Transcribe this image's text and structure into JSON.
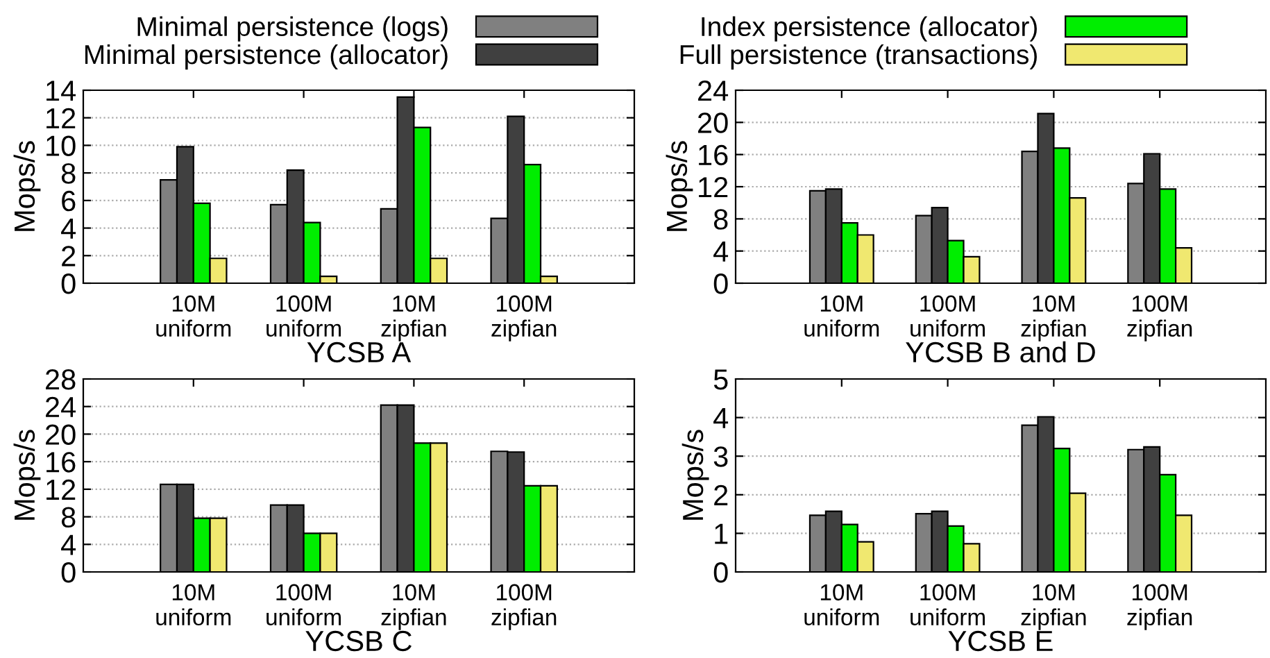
{
  "chart_data": [
    {
      "type": "bar",
      "xlabel": "YCSB A",
      "ylabel": "Mops/s",
      "categories": [
        "10M\nuniform",
        "100M\nuniform",
        "10M\nzipfian",
        "100M\nzipfian"
      ],
      "ylim": [
        0,
        14
      ],
      "yticks": [
        0,
        2,
        4,
        6,
        8,
        10,
        12,
        14
      ],
      "grid": "y",
      "legend": "top",
      "series": [
        {
          "name": "Minimal persistence (logs)",
          "color": "#808080",
          "values": [
            7.5,
            5.7,
            5.4,
            4.7
          ]
        },
        {
          "name": "Minimal persistence (allocator)",
          "color": "#404040",
          "values": [
            9.9,
            8.2,
            13.5,
            12.1
          ]
        },
        {
          "name": "Index persistence (allocator)",
          "color": "#00ee00",
          "values": [
            5.8,
            4.4,
            11.3,
            8.6
          ]
        },
        {
          "name": "Full persistence (transactions)",
          "color": "#f0e870",
          "values": [
            1.8,
            0.5,
            1.8,
            0.5
          ]
        }
      ]
    },
    {
      "type": "bar",
      "xlabel": "YCSB B and D",
      "ylabel": "Mops/s",
      "categories": [
        "10M\nuniform",
        "100M\nuniform",
        "10M\nzipfian",
        "100M\nzipfian"
      ],
      "ylim": [
        0,
        24
      ],
      "yticks": [
        0,
        4,
        8,
        12,
        16,
        20,
        24
      ],
      "grid": "y",
      "series": [
        {
          "color": "#808080",
          "values": [
            11.5,
            8.4,
            16.4,
            12.4
          ]
        },
        {
          "color": "#404040",
          "values": [
            11.7,
            9.4,
            21.1,
            16.1
          ]
        },
        {
          "color": "#00ee00",
          "values": [
            7.5,
            5.3,
            16.8,
            11.7
          ]
        },
        {
          "color": "#f0e870",
          "values": [
            6.0,
            3.3,
            10.6,
            4.4
          ]
        }
      ]
    },
    {
      "type": "bar",
      "xlabel": "YCSB C",
      "ylabel": "Mops/s",
      "categories": [
        "10M\nuniform",
        "100M\nuniform",
        "10M\nzipfian",
        "100M\nzipfian"
      ],
      "ylim": [
        0,
        28
      ],
      "yticks": [
        0,
        4,
        8,
        12,
        16,
        20,
        24,
        28
      ],
      "grid": "y",
      "series": [
        {
          "color": "#808080",
          "values": [
            12.7,
            9.7,
            24.2,
            17.5
          ]
        },
        {
          "color": "#404040",
          "values": [
            12.7,
            9.7,
            24.2,
            17.4
          ]
        },
        {
          "color": "#00ee00",
          "values": [
            7.8,
            5.6,
            18.7,
            12.5
          ]
        },
        {
          "color": "#f0e870",
          "values": [
            7.8,
            5.6,
            18.7,
            12.5
          ]
        }
      ]
    },
    {
      "type": "bar",
      "xlabel": "YCSB E",
      "ylabel": "Mops/s",
      "categories": [
        "10M\nuniform",
        "100M\nuniform",
        "10M\nzipfian",
        "100M\nzipfian"
      ],
      "ylim": [
        0,
        5
      ],
      "yticks": [
        0,
        1,
        2,
        3,
        4,
        5
      ],
      "grid": "y",
      "series": [
        {
          "color": "#808080",
          "values": [
            1.47,
            1.51,
            3.8,
            3.17
          ]
        },
        {
          "color": "#404040",
          "values": [
            1.57,
            1.57,
            4.02,
            3.24
          ]
        },
        {
          "color": "#00ee00",
          "values": [
            1.23,
            1.19,
            3.2,
            2.52
          ]
        },
        {
          "color": "#f0e870",
          "values": [
            0.78,
            0.73,
            2.04,
            1.47
          ]
        }
      ]
    }
  ]
}
